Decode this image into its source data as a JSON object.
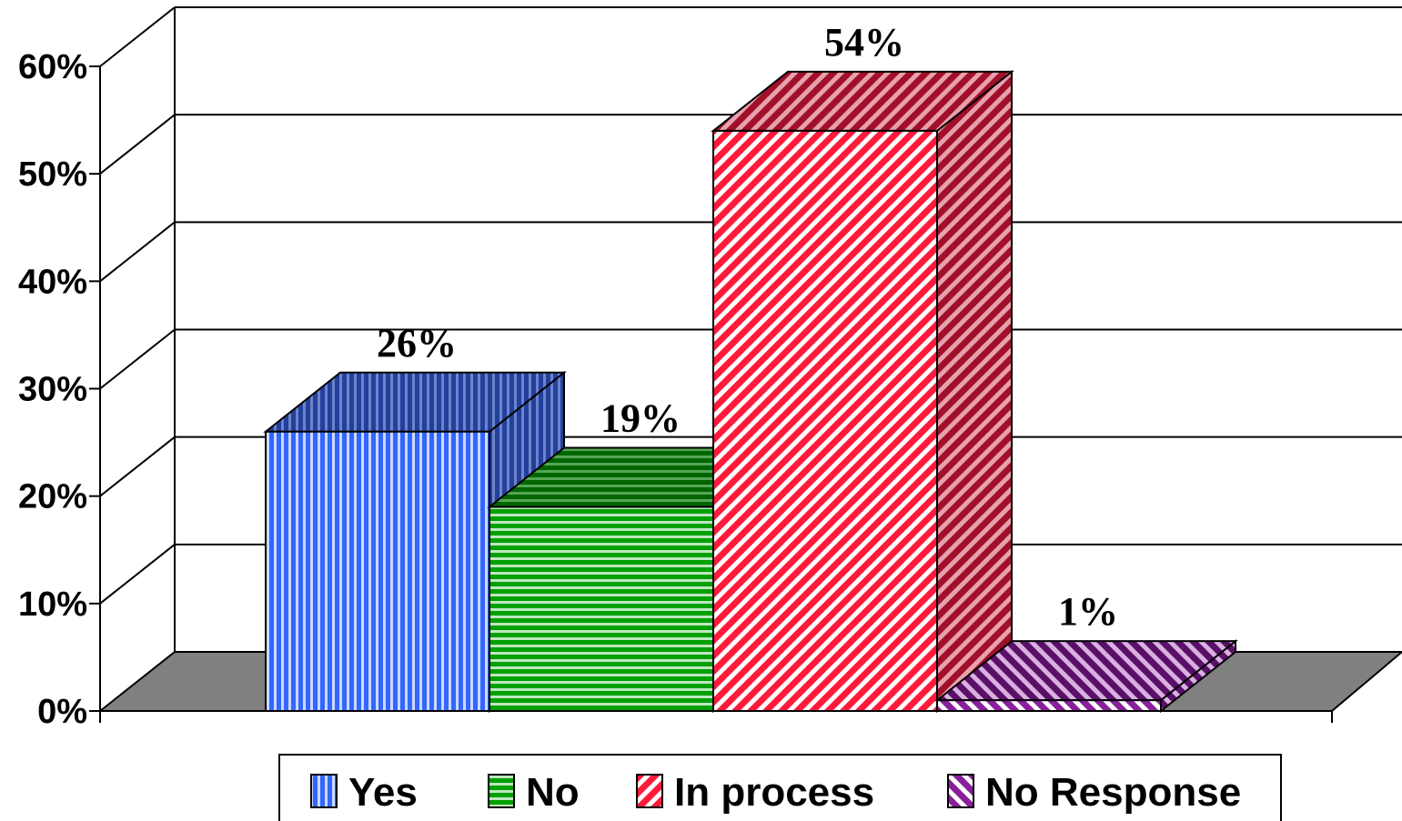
{
  "chart_data": {
    "type": "bar",
    "categories": [
      "Yes",
      "No",
      "In process",
      "No Response"
    ],
    "values": [
      26,
      19,
      54,
      1
    ],
    "data_labels": [
      "26%",
      "19%",
      "54%",
      "1%"
    ],
    "ylim": [
      0,
      60
    ],
    "y_ticks": [
      "0%",
      "10%",
      "20%",
      "30%",
      "40%",
      "50%",
      "60%"
    ],
    "grid": true,
    "legend_position": "bottom",
    "style": "3d",
    "series_colors": [
      "#3366ff",
      "#009900",
      "#ff1a3c",
      "#7a1a8c"
    ],
    "floor_color": "#808080"
  }
}
